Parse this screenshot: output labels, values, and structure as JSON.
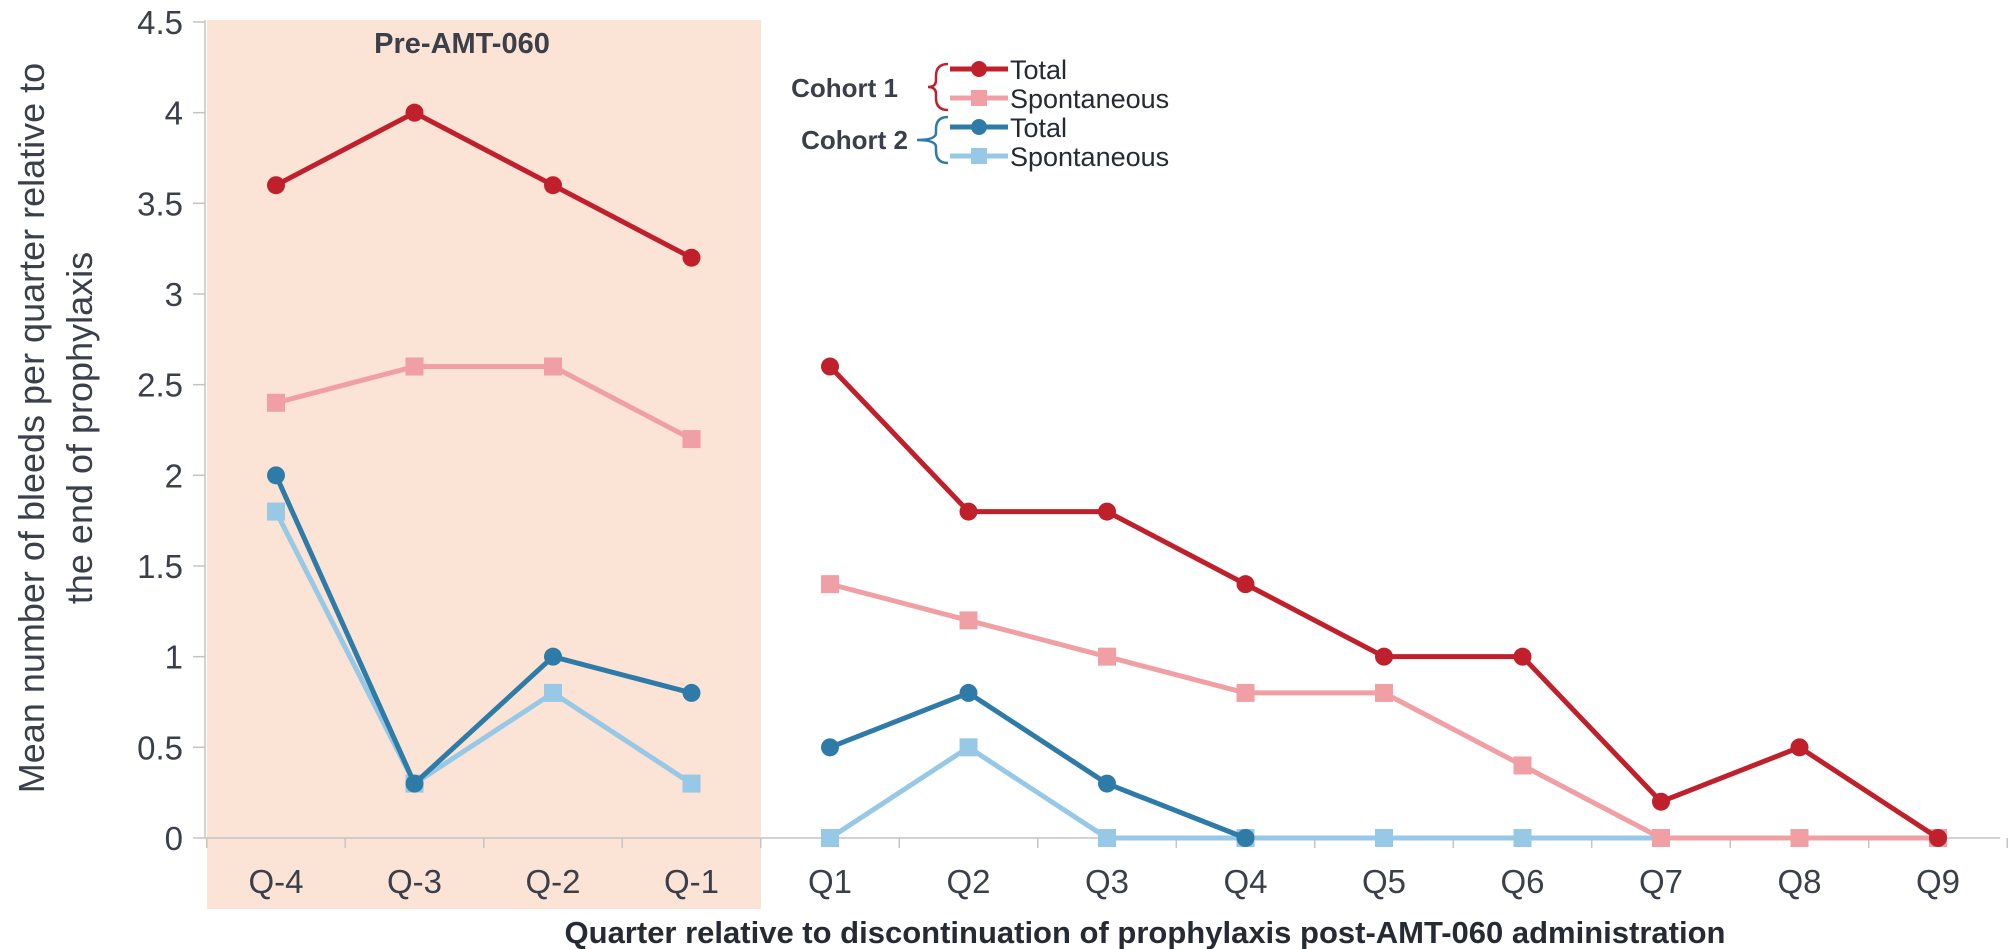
{
  "chart_data": {
    "type": "line",
    "xlabel": "Quarter relative to discontinuation of prophylaxis post-AMT-060 administration",
    "ylabel_line1": "Mean number of bleeds per quarter relative to",
    "ylabel_line2": "the end of prophylaxis",
    "ylim": [
      0,
      4.5
    ],
    "yticks": [
      "0",
      "0.5",
      "1",
      "1.5",
      "2",
      "2.5",
      "3",
      "3.5",
      "4",
      "4.5"
    ],
    "categories": [
      "Q-4",
      "Q-3",
      "Q-2",
      "Q-1",
      "Q1",
      "Q2",
      "Q3",
      "Q4",
      "Q5",
      "Q6",
      "Q7",
      "Q8",
      "Q9"
    ],
    "shaded_region": {
      "label": "Pre-AMT-060",
      "categories": [
        "Q-4",
        "Q-3",
        "Q-2",
        "Q-1"
      ],
      "color": "#fbe3d6"
    },
    "grid": false,
    "legend_position": "top-center",
    "series": [
      {
        "name": "Total",
        "cohort": "Cohort 1",
        "marker": "circle",
        "color": "#c0202b",
        "values": [
          3.6,
          4.0,
          3.6,
          3.2,
          2.6,
          1.8,
          1.8,
          1.4,
          1.0,
          1.0,
          0.2,
          0.5,
          0
        ]
      },
      {
        "name": "Spontaneous",
        "cohort": "Cohort 1",
        "marker": "square",
        "color": "#f0a0a4",
        "values": [
          2.4,
          2.6,
          2.6,
          2.2,
          1.4,
          1.2,
          1.0,
          0.8,
          0.8,
          0.4,
          0,
          0,
          0
        ]
      },
      {
        "name": "Total",
        "cohort": "Cohort 2",
        "marker": "circle",
        "color": "#2e7ba8",
        "values": [
          2.0,
          0.3,
          1.0,
          0.8,
          0.5,
          0.8,
          0.3,
          0,
          null,
          null,
          null,
          null,
          null
        ]
      },
      {
        "name": "Spontaneous",
        "cohort": "Cohort 2",
        "marker": "square",
        "color": "#97c8e6",
        "values": [
          1.8,
          0.3,
          0.8,
          0.3,
          0,
          0.5,
          0,
          0,
          0,
          0,
          0,
          null,
          null
        ]
      }
    ],
    "legend": {
      "cohorts": [
        "Cohort 1",
        "Cohort 2"
      ],
      "entries": [
        "Total",
        "Spontaneous",
        "Total",
        "Spontaneous"
      ]
    }
  }
}
